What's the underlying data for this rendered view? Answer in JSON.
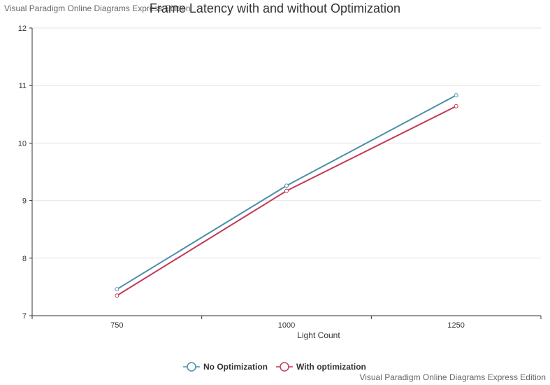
{
  "watermark_top": "Visual Paradigm Online Diagrams Express Edition",
  "watermark_bottom": "Visual Paradigm Online Diagrams Express Edition",
  "chart_data": {
    "type": "line",
    "title": "Frame Latency with and without Optimization",
    "xlabel": "Light Count",
    "ylabel": "",
    "categories": [
      "750",
      "1000",
      "1250"
    ],
    "ylim": [
      7,
      12
    ],
    "yticks": [
      7,
      8,
      9,
      10,
      11,
      12
    ],
    "grid": true,
    "legend_position": "bottom-center",
    "series": [
      {
        "name": "No Optimization",
        "color": "#4a90a8",
        "values": [
          7.46,
          9.26,
          10.83
        ]
      },
      {
        "name": "With optimization",
        "color": "#c23a55",
        "values": [
          7.35,
          9.17,
          10.64
        ]
      }
    ]
  }
}
